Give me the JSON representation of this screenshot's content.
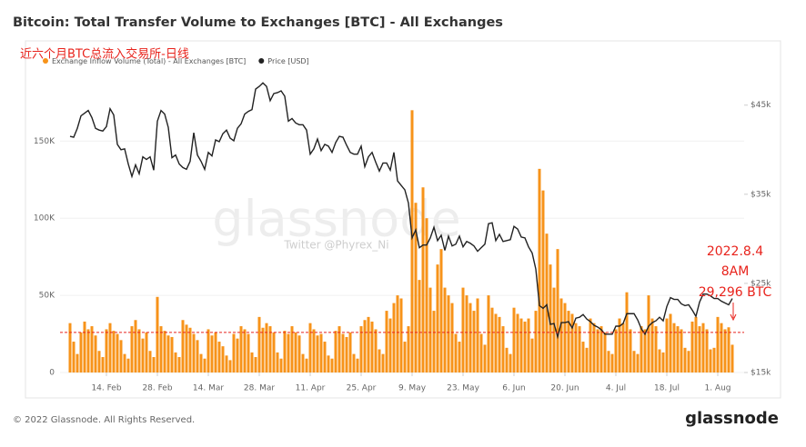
{
  "chart_data": {
    "type": "bar",
    "title": "Bitcoin: Total Transfer Volume to Exchanges [BTC] - All Exchanges",
    "overlay_text": "近六个月BTC总流入交易所-日线",
    "watermark": "glassnode",
    "watermark_sub": "Twitter @Phyrex_Ni",
    "annotations": [
      "2022.8.4",
      "8AM",
      "29,296 BTC"
    ],
    "annotation_color": "#e8231c",
    "reference_line": 26000,
    "footer": "© 2022 Glassnode. All Rights Reserved.",
    "brand": "glassnode",
    "categories": [
      null,
      null,
      null,
      null,
      null,
      null,
      null,
      null,
      null,
      null,
      "14. Feb",
      null,
      null,
      null,
      null,
      null,
      null,
      null,
      null,
      null,
      null,
      null,
      null,
      null,
      "28. Feb",
      null,
      null,
      null,
      null,
      null,
      null,
      null,
      null,
      null,
      null,
      null,
      null,
      null,
      "14. Mar",
      null,
      null,
      null,
      null,
      null,
      null,
      null,
      null,
      null,
      null,
      null,
      null,
      null,
      "28. Mar",
      null,
      null,
      null,
      null,
      null,
      null,
      null,
      null,
      null,
      null,
      null,
      null,
      null,
      "11. Apr",
      null,
      null,
      null,
      null,
      null,
      null,
      null,
      null,
      null,
      null,
      null,
      null,
      null,
      "25. Apr",
      null,
      null,
      null,
      null,
      null,
      null,
      null,
      null,
      null,
      null,
      null,
      null,
      null,
      "9. May",
      null,
      null,
      null,
      null,
      null,
      null,
      null,
      null,
      null,
      null,
      null,
      null,
      null,
      "23. May",
      null,
      null,
      null,
      null,
      null,
      null,
      null,
      null,
      null,
      null,
      null,
      null,
      null,
      "6. Jun",
      null,
      null,
      null,
      null,
      null,
      null,
      null,
      null,
      null,
      null,
      null,
      null,
      null,
      "20. Jun",
      null,
      null,
      null,
      null,
      null,
      null,
      null,
      null,
      null,
      null,
      null,
      null,
      null,
      "4. Jul",
      null,
      null,
      null,
      null,
      null,
      null,
      null,
      null,
      null,
      null,
      null,
      null,
      null,
      "18. Jul",
      null,
      null,
      null,
      null,
      null,
      null,
      null,
      null,
      null,
      null,
      null,
      null,
      null,
      "1. Aug",
      null,
      null,
      null,
      null
    ],
    "series": [
      {
        "name": "Exchange Inflow Volume (Total) - All Exchanges [BTC]",
        "type": "bar",
        "color": "#f7931a",
        "values": [
          32000,
          20000,
          12000,
          26000,
          33000,
          28000,
          30000,
          24000,
          14000,
          10000,
          28000,
          32000,
          27000,
          25000,
          21000,
          12000,
          9000,
          30000,
          34000,
          28000,
          22000,
          26000,
          14000,
          10000,
          49000,
          30000,
          27000,
          24000,
          23000,
          13000,
          10000,
          34000,
          31000,
          29000,
          25000,
          21000,
          12000,
          9000,
          28000,
          24000,
          26000,
          20000,
          17000,
          11000,
          8000,
          25000,
          22000,
          30000,
          28000,
          25000,
          13000,
          10000,
          36000,
          29000,
          32000,
          30000,
          26000,
          13000,
          9000,
          27000,
          25000,
          30000,
          26000,
          24000,
          12000,
          9000,
          32000,
          28000,
          24000,
          25000,
          20000,
          11000,
          9000,
          27000,
          30000,
          25000,
          23000,
          26000,
          12000,
          9000,
          30000,
          34000,
          36000,
          33000,
          28000,
          15000,
          12000,
          40000,
          35000,
          45000,
          50000,
          48000,
          20000,
          30000,
          170000,
          110000,
          60000,
          120000,
          100000,
          55000,
          40000,
          70000,
          80000,
          55000,
          50000,
          45000,
          25000,
          20000,
          55000,
          50000,
          45000,
          40000,
          48000,
          25000,
          18000,
          50000,
          42000,
          38000,
          36000,
          30000,
          16000,
          12000,
          42000,
          38000,
          35000,
          33000,
          35000,
          22000,
          40000,
          132000,
          118000,
          90000,
          70000,
          55000,
          80000,
          48000,
          45000,
          40000,
          38000,
          32000,
          30000,
          20000,
          16000,
          35000,
          32000,
          28000,
          30000,
          26000,
          14000,
          12000,
          28000,
          35000,
          32000,
          52000,
          28000,
          14000,
          12000,
          30000,
          28000,
          50000,
          35000,
          30000,
          15000,
          13000,
          35000,
          38000,
          32000,
          30000,
          28000,
          16000,
          14000,
          33000,
          36000,
          30000,
          32000,
          28000,
          15000,
          16000,
          36000,
          32000,
          28000,
          29296,
          18000
        ]
      },
      {
        "name": "Price [USD]",
        "type": "line",
        "axis": "y2",
        "color": "#222222",
        "values": [
          41500,
          41400,
          42400,
          43800,
          44100,
          44400,
          43600,
          42400,
          42200,
          42100,
          42600,
          44600,
          43900,
          40600,
          40000,
          40100,
          38400,
          37000,
          38300,
          37300,
          39200,
          38900,
          39200,
          37700,
          43200,
          44400,
          44000,
          42500,
          39100,
          39400,
          38400,
          38000,
          37800,
          38700,
          41900,
          39400,
          38700,
          37800,
          39700,
          39300,
          41100,
          40900,
          41800,
          42200,
          41300,
          41000,
          42400,
          42900,
          44000,
          44300,
          44500,
          46800,
          47100,
          47500,
          47100,
          45500,
          46300,
          46400,
          46600,
          46000,
          43200,
          43500,
          43000,
          42800,
          42800,
          42200,
          39500,
          40100,
          41200,
          39900,
          40600,
          40400,
          39700,
          40800,
          41500,
          41400,
          40500,
          39700,
          39500,
          39500,
          40400,
          38100,
          39200,
          39700,
          38600,
          37600,
          38500,
          38500,
          37700,
          39700,
          36500,
          36000,
          35500,
          34000,
          30100,
          31000,
          29000,
          29300,
          29300,
          30100,
          31300,
          29800,
          30400,
          28700,
          30300,
          29200,
          29400,
          30300,
          29100,
          29700,
          29500,
          29200,
          28600,
          29000,
          29400,
          31700,
          31800,
          29800,
          30500,
          29700,
          29800,
          29900,
          31400,
          31100,
          30200,
          30100,
          29100,
          28400,
          26600,
          22500,
          22200,
          22600,
          20400,
          20500,
          19000,
          20600,
          20600,
          20700,
          20000,
          21100,
          21200,
          21500,
          21000,
          20700,
          20300,
          20100,
          19800,
          19300,
          19300,
          19300,
          20200,
          20200,
          20500,
          21600,
          21600,
          21600,
          20900,
          19900,
          19300,
          20200,
          20600,
          20800,
          21200,
          20800,
          22400,
          23400,
          23200,
          23200,
          22700,
          22500,
          22600,
          22000,
          21300,
          22900,
          23800,
          23800,
          23600,
          23300,
          23300,
          23000,
          22800,
          22600,
          23300
        ]
      }
    ],
    "ylim": [
      0,
      212000
    ],
    "yticks": [
      0,
      {
        "value": 50000,
        "label": "50K"
      },
      {
        "value": 100000,
        "label": "100K"
      },
      {
        "value": 150000,
        "label": "150K"
      }
    ],
    "y2lim": [
      15000,
      51700
    ],
    "y2ticks": [
      {
        "value": 15000,
        "label": "$15k"
      },
      {
        "value": 25000,
        "label": "$25k"
      },
      {
        "value": 35000,
        "label": "$35k"
      },
      {
        "value": 45000,
        "label": "$45k"
      }
    ]
  }
}
